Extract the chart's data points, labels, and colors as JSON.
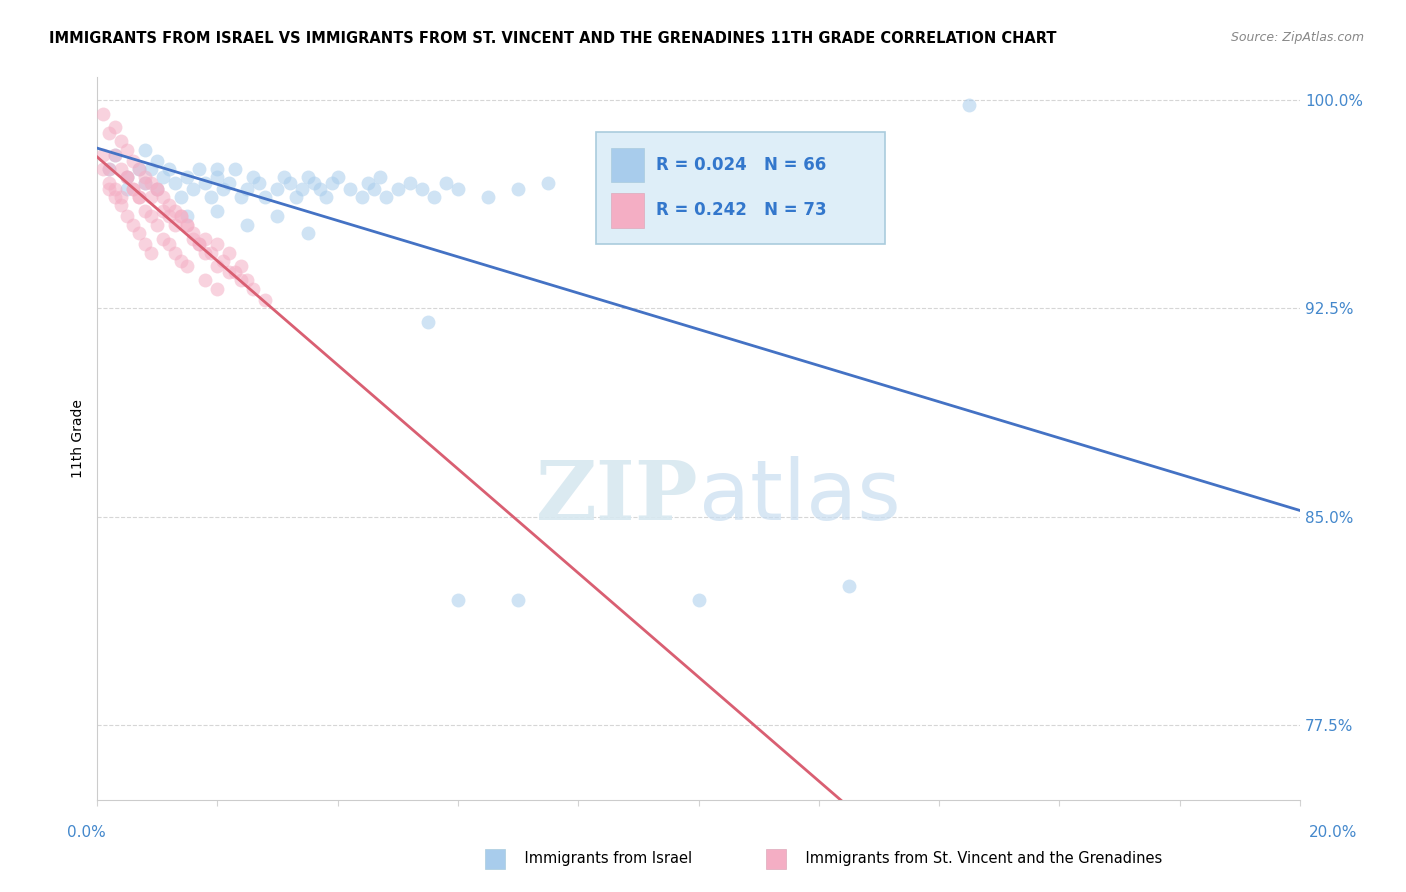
{
  "title": "IMMIGRANTS FROM ISRAEL VS IMMIGRANTS FROM ST. VINCENT AND THE GRENADINES 11TH GRADE CORRELATION CHART",
  "source": "Source: ZipAtlas.com",
  "ylabel": "11th Grade",
  "xmin": 0.0,
  "xmax": 0.2,
  "ymin": 0.748,
  "ymax": 1.008,
  "yticks": [
    0.775,
    0.85,
    0.925,
    1.0
  ],
  "ytick_labels": [
    "77.5%",
    "85.0%",
    "92.5%",
    "100.0%"
  ],
  "color_israel": "#a8ccec",
  "color_stvincent": "#f4aec4",
  "trendline_israel": "#4472c4",
  "trendline_stvincent": "#d95f72",
  "legend_R_israel": "R = 0.024",
  "legend_N_israel": "N = 66",
  "legend_R_stvincent": "R = 0.242",
  "legend_N_stvincent": "N = 73",
  "israel_x": [
    0.002,
    0.003,
    0.005,
    0.005,
    0.007,
    0.008,
    0.008,
    0.009,
    0.01,
    0.01,
    0.011,
    0.012,
    0.013,
    0.014,
    0.015,
    0.016,
    0.017,
    0.018,
    0.019,
    0.02,
    0.02,
    0.021,
    0.022,
    0.023,
    0.024,
    0.025,
    0.026,
    0.027,
    0.028,
    0.03,
    0.031,
    0.032,
    0.033,
    0.034,
    0.035,
    0.036,
    0.037,
    0.038,
    0.039,
    0.04,
    0.042,
    0.044,
    0.045,
    0.046,
    0.047,
    0.048,
    0.05,
    0.052,
    0.054,
    0.056,
    0.058,
    0.06,
    0.065,
    0.07,
    0.075,
    0.015,
    0.02,
    0.025,
    0.03,
    0.035,
    0.055,
    0.07,
    0.1,
    0.125,
    0.145,
    0.06
  ],
  "israel_y": [
    0.975,
    0.98,
    0.972,
    0.968,
    0.975,
    0.97,
    0.982,
    0.975,
    0.968,
    0.978,
    0.972,
    0.975,
    0.97,
    0.965,
    0.972,
    0.968,
    0.975,
    0.97,
    0.965,
    0.972,
    0.975,
    0.968,
    0.97,
    0.975,
    0.965,
    0.968,
    0.972,
    0.97,
    0.965,
    0.968,
    0.972,
    0.97,
    0.965,
    0.968,
    0.972,
    0.97,
    0.968,
    0.965,
    0.97,
    0.972,
    0.968,
    0.965,
    0.97,
    0.968,
    0.972,
    0.965,
    0.968,
    0.97,
    0.968,
    0.965,
    0.97,
    0.968,
    0.965,
    0.968,
    0.97,
    0.958,
    0.96,
    0.955,
    0.958,
    0.952,
    0.92,
    0.82,
    0.82,
    0.825,
    0.998,
    0.82
  ],
  "stvincent_x": [
    0.001,
    0.001,
    0.002,
    0.002,
    0.002,
    0.003,
    0.003,
    0.003,
    0.004,
    0.004,
    0.004,
    0.005,
    0.005,
    0.005,
    0.006,
    0.006,
    0.006,
    0.007,
    0.007,
    0.007,
    0.008,
    0.008,
    0.008,
    0.009,
    0.009,
    0.009,
    0.01,
    0.01,
    0.011,
    0.011,
    0.012,
    0.012,
    0.013,
    0.013,
    0.014,
    0.014,
    0.015,
    0.015,
    0.016,
    0.017,
    0.018,
    0.018,
    0.019,
    0.02,
    0.02,
    0.021,
    0.022,
    0.023,
    0.024,
    0.025,
    0.001,
    0.002,
    0.003,
    0.004,
    0.005,
    0.006,
    0.007,
    0.008,
    0.009,
    0.01,
    0.011,
    0.012,
    0.013,
    0.014,
    0.015,
    0.016,
    0.017,
    0.018,
    0.02,
    0.022,
    0.024,
    0.026,
    0.028
  ],
  "stvincent_y": [
    0.98,
    0.995,
    0.988,
    0.975,
    0.968,
    0.99,
    0.98,
    0.965,
    0.985,
    0.975,
    0.962,
    0.982,
    0.972,
    0.958,
    0.978,
    0.968,
    0.955,
    0.975,
    0.965,
    0.952,
    0.972,
    0.96,
    0.948,
    0.97,
    0.958,
    0.945,
    0.968,
    0.955,
    0.965,
    0.95,
    0.962,
    0.948,
    0.96,
    0.945,
    0.958,
    0.942,
    0.955,
    0.94,
    0.952,
    0.948,
    0.95,
    0.935,
    0.945,
    0.948,
    0.932,
    0.942,
    0.945,
    0.938,
    0.94,
    0.935,
    0.975,
    0.97,
    0.968,
    0.965,
    0.972,
    0.968,
    0.965,
    0.97,
    0.965,
    0.968,
    0.96,
    0.958,
    0.955,
    0.958,
    0.955,
    0.95,
    0.948,
    0.945,
    0.94,
    0.938,
    0.935,
    0.932,
    0.928
  ],
  "watermark_zip": "ZIP",
  "watermark_atlas": "atlas",
  "marker_size": 10,
  "alpha": 0.55
}
